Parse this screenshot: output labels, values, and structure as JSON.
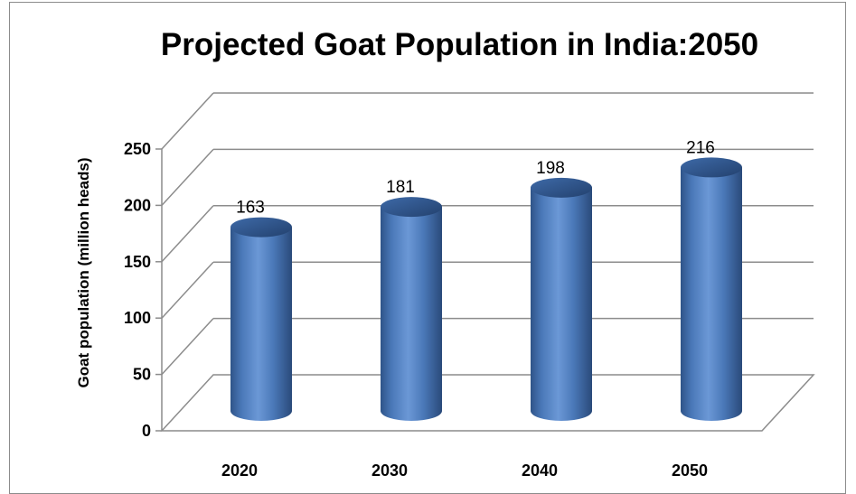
{
  "chart_data": {
    "type": "bar",
    "title": "Projected Goat Population in India:2050",
    "ylabel": "Goat population (million heads)",
    "xlabel": "",
    "categories": [
      "2020",
      "2030",
      "2040",
      "2050"
    ],
    "values": [
      163,
      181,
      198,
      216
    ],
    "data_labels": [
      "163",
      "181",
      "198",
      "216"
    ],
    "ylim": [
      0,
      250
    ],
    "yticks": [
      "0",
      "50",
      "100",
      "150",
      "200",
      "250"
    ],
    "grid": true,
    "style": "3d-cylinder",
    "colors": {
      "bar": "#4f81bd",
      "bar_dark": "#2c4d7e",
      "grid": "#8c8c8c"
    }
  }
}
